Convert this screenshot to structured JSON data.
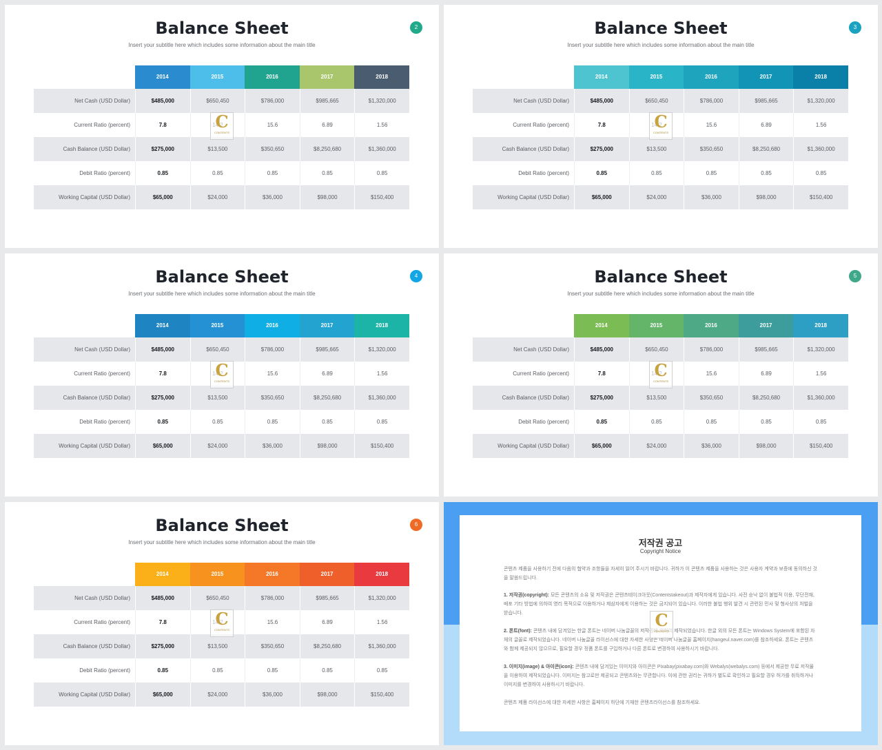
{
  "slides": [
    {
      "title": "Balance Sheet",
      "subtitle": "Insert your subtitle here which includes some information about the main title",
      "page": "2",
      "badge_color": "#22a88a",
      "header_colors": [
        "#2a8ccf",
        "#4dbdea",
        "#20a48f",
        "#a9c66c",
        "#4a5d70"
      ]
    },
    {
      "title": "Balance Sheet",
      "subtitle": "Insert your subtitle here which includes some information about the main title",
      "page": "3",
      "badge_color": "#1aa2c0",
      "header_colors": [
        "#4ec4d0",
        "#2ab4c8",
        "#1ea5bd",
        "#1294b6",
        "#0a80a8"
      ]
    },
    {
      "title": "Balance Sheet",
      "subtitle": "Insert your subtitle here which includes some information about the main title",
      "page": "4",
      "badge_color": "#12a6e4",
      "header_colors": [
        "#1f85c2",
        "#2391d4",
        "#0fafe6",
        "#22a3d0",
        "#1db4a8"
      ]
    },
    {
      "title": "Balance Sheet",
      "subtitle": "Insert your subtitle here which includes some information about the main title",
      "page": "5",
      "badge_color": "#3fa889",
      "header_colors": [
        "#7bbd54",
        "#64b46a",
        "#4da986",
        "#3c9d9c",
        "#2d9fc4"
      ]
    },
    {
      "title": "Balance Sheet",
      "subtitle": "Insert your subtitle here which includes some information about the main title",
      "page": "6",
      "badge_color": "#ef6a25",
      "header_colors": [
        "#fbb019",
        "#f8921f",
        "#f47828",
        "#ef5f2a",
        "#e83a3f"
      ]
    }
  ],
  "table": {
    "years": [
      "2014",
      "2015",
      "2016",
      "2017",
      "2018"
    ],
    "rows": [
      {
        "label": "Net Cash (USD Dollar)",
        "values": [
          "$485,000",
          "$650,450",
          "$786,000",
          "$985,665",
          "$1,320,000"
        ]
      },
      {
        "label": "Current Ratio (percent)",
        "values": [
          "7.8",
          "14.2",
          "15.6",
          "6.89",
          "1.56"
        ]
      },
      {
        "label": "Cash Balance (USD Dollar)",
        "values": [
          "$275,000",
          "$13,500",
          "$350,650",
          "$8,250,680",
          "$1,360,000"
        ]
      },
      {
        "label": "Debit Ratio (percent)",
        "values": [
          "0.85",
          "0.85",
          "0.85",
          "0.85",
          "0.85"
        ]
      },
      {
        "label": "Working Capital (USD Dollar)",
        "values": [
          "$65,000",
          "$24,000",
          "$36,000",
          "$98,000",
          "$150,400"
        ]
      }
    ]
  },
  "watermark": {
    "letter": "C",
    "text": "CONTENTS"
  },
  "notice": {
    "title": "저작권 공고",
    "subtitle": "Copyright Notice",
    "intro": "콘텐츠 제품을 사용하기 전에 다음의 협약과 조항들을 자세히 읽어 주시기 바랍니다. 귀하가 이 콘텐츠 제품을 사용하는 것은 사용자 계약과 보증에 동의하신 것을 말씀드립니다.",
    "sections": [
      {
        "head": "1. 저작권(copyright):",
        "body": "모든 콘텐츠의 소유 및 저작권은 콘텐츠테이크아웃(Contentstakeout)과 제작자에게 있습니다. 사전 승낙 없이 불법적 이용, 무단전재, 배포 기타 방법에 의하여 영리 목적으로 이용하거나 제삼자에게 이용하는 것은 금지되어 있습니다. 이러한 불법 행위 발견 시 관련된 민사 및 형사상의 처벌을 받습니다."
      },
      {
        "head": "2. 폰트(font):",
        "body": "콘텐츠 내에 담겨있는 한글 폰트는 네이버 나눔글꼴의 저작권에 의하여 제작되었습니다. 한글 외의 모든 폰트는 Windows System에 포함된 자체의 글꼴로 제작되었습니다. 네이버 나눔글꼴 라이선스에 대한 자세한 사항은 네이버 나눔글꼴 홈페이지(hangeul.naver.com)를 참조하세요. 폰트는 콘텐츠와 함께 제공되지 않으므로, 필요할 경우 정품 폰트를 구입하거나 다른 폰트로 변경하여 사용하시기 바랍니다."
      },
      {
        "head": "3. 이미지(image) & 아이콘(icon):",
        "body": "콘텐츠 내에 담겨있는 이미지와 아이콘은 Pixabay(pixabay.com)와 Webalys(webalys.com) 등에서 제공한 무료 저작물을 이용하여 제작되었습니다. 이미지는 참고로만 제공되고 콘텐츠와는 무관합니다. 이에 관한 권리는 귀하가 별도로 확인하고 필요할 경우 허가를 취득하거나 이미지를 변경하여 사용하시기 바랍니다."
      }
    ],
    "outro": "콘텐츠 제품 라이선스에 대한 자세한 사항은 홈페이지 하단에 기재한 콘텐츠라이선스를 참조하세요."
  }
}
